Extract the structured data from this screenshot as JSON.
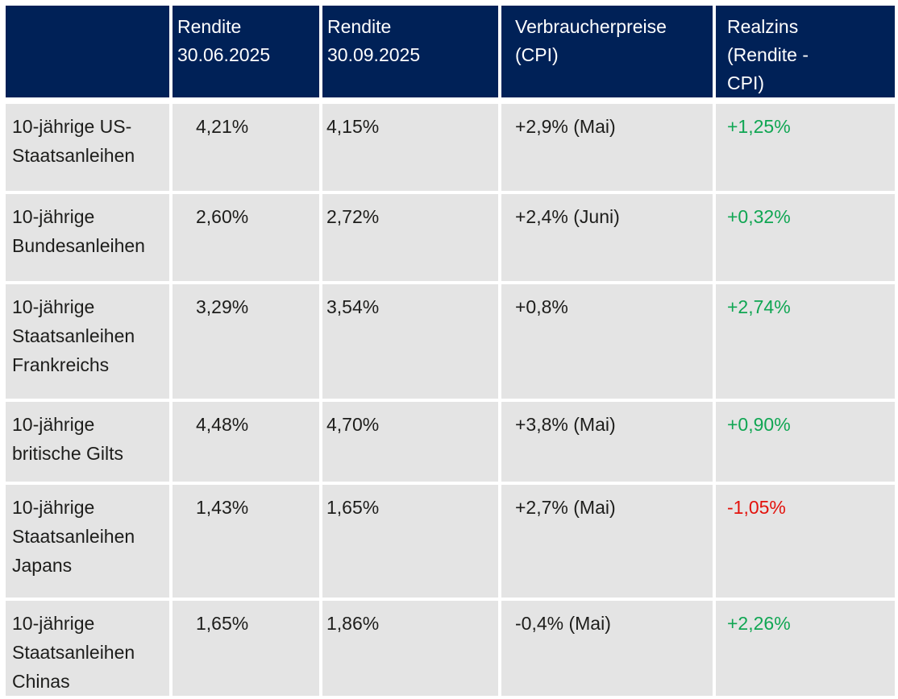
{
  "colors": {
    "header_bg": "#002157",
    "row_bg": "#e4e4e4",
    "positive_value": "#10a653",
    "negative_value": "#e3120c",
    "header_text": "#ffffff",
    "body_text": "#1d1d1b"
  },
  "table": {
    "header": {
      "col1": "",
      "col2": "Rendite\n30.06.2025",
      "col3": "Rendite\n30.09.2025",
      "col4": "Verbraucherpreise\n(CPI)",
      "col5": "Realzins\n(Rendite -\nCPI)"
    },
    "rows": [
      {
        "label": "10-jährige US-Staatsanleihen",
        "rendite_30_06_2025": "4,21%",
        "rendite_30_09_2025": "4,15%",
        "cpi": "+2,9% (Mai)",
        "realzins": "+1,25%",
        "realzins_tone": "positive"
      },
      {
        "label": "10-jährige Bundesanleihen",
        "rendite_30_06_2025": "2,60%",
        "rendite_30_09_2025": "2,72%",
        "cpi": "+2,4% (Juni)",
        "realzins": "+0,32%",
        "realzins_tone": "positive"
      },
      {
        "label": "10-jährige Staatsanleihen Frankreichs",
        "rendite_30_06_2025": "3,29%",
        "rendite_30_09_2025": "3,54%",
        "cpi": "+0,8%",
        "realzins": "+2,74%",
        "realzins_tone": "positive"
      },
      {
        "label": "10-jährige britische Gilts",
        "rendite_30_06_2025": "4,48%",
        "rendite_30_09_2025": "4,70%",
        "cpi": "+3,8% (Mai)",
        "realzins": "+0,90%",
        "realzins_tone": "positive"
      },
      {
        "label": "10-jährige Staatsanleihen Japans",
        "rendite_30_06_2025": "1,43%",
        "rendite_30_09_2025": "1,65%",
        "cpi": "+2,7% (Mai)",
        "realzins": "-1,05%",
        "realzins_tone": "negative"
      },
      {
        "label": "10-jährige Staatsanleihen Chinas",
        "rendite_30_06_2025": "1,65%",
        "rendite_30_09_2025": "1,86%",
        "cpi": "-0,4% (Mai)",
        "realzins": "+2,26%",
        "realzins_tone": "positive"
      }
    ]
  },
  "chart_data": {
    "type": "table",
    "title": "",
    "columns": [
      "",
      "Rendite 30.06.2025",
      "Rendite 30.09.2025",
      "Verbraucherpreise (CPI)",
      "Realzins (Rendite - CPI)"
    ],
    "rows": [
      [
        "10-jährige US-Staatsanleihen",
        "4,21%",
        "4,15%",
        "+2,9% (Mai)",
        "+1,25%"
      ],
      [
        "10-jährige Bundesanleihen",
        "2,60%",
        "2,72%",
        "+2,4% (Juni)",
        "+0,32%"
      ],
      [
        "10-jährige Staatsanleihen Frankreichs",
        "3,29%",
        "3,54%",
        "+0,8%",
        "+2,74%"
      ],
      [
        "10-jährige britische Gilts",
        "4,48%",
        "4,70%",
        "+3,8% (Mai)",
        "+0,90%"
      ],
      [
        "10-jährige Staatsanleihen Japans",
        "1,43%",
        "1,65%",
        "+2,7% (Mai)",
        "-1,05%"
      ],
      [
        "10-jährige Staatsanleihen Chinas",
        "1,65%",
        "1,86%",
        "-0,4% (Mai)",
        "+2,26%"
      ]
    ]
  }
}
